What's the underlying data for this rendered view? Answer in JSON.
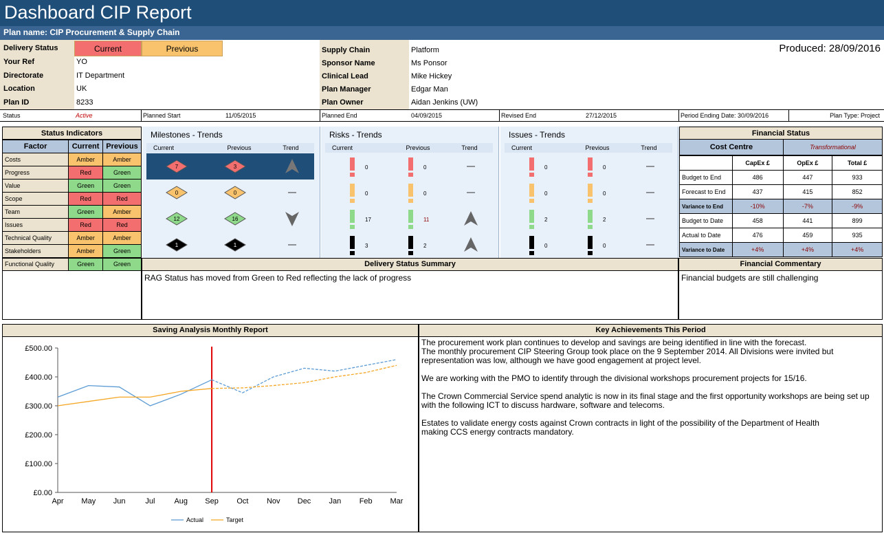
{
  "title": "Dashboard CIP Report",
  "plan_name": "Plan name: CIP Procurement & Supply Chain",
  "produced": "Produced: 28/09/2016",
  "delivery_status": {
    "label": "Delivery Status",
    "current": "Current",
    "previous": "Previous"
  },
  "left_fields": [
    {
      "label": "Your Ref",
      "value": "YO"
    },
    {
      "label": "Directorate",
      "value": "IT Department"
    },
    {
      "label": "Location",
      "value": "UK"
    },
    {
      "label": "Plan ID",
      "value": "8233"
    }
  ],
  "right_fields": [
    {
      "label": "Supply Chain",
      "value": "Platform"
    },
    {
      "label": "Sponsor Name",
      "value": "Ms Ponsor"
    },
    {
      "label": "Clinical Lead",
      "value": "Mike Hickey"
    },
    {
      "label": "Plan Manager",
      "value": "Edgar Man"
    },
    {
      "label": "Plan Owner",
      "value": "Aidan Jenkins (UW)"
    }
  ],
  "status_row": {
    "status_label": "Status",
    "status_value": "Active",
    "planned_start_label": "Planned Start",
    "planned_start": "11/05/2015",
    "planned_end_label": "Planned End",
    "planned_end": "04/09/2015",
    "revised_end_label": "Revised End",
    "revised_end": "27/12/2015",
    "period_ending": "Period Ending Date: 30/09/2016",
    "plan_type": "Plan Type:  Project"
  },
  "status_indicators": {
    "title": "Status Indicators",
    "headers": [
      "Factor",
      "Current",
      "Previous"
    ],
    "rows": [
      {
        "factor": "Costs",
        "current": "Amber",
        "previous": "Amber"
      },
      {
        "factor": "Progress",
        "current": "Red",
        "previous": "Green"
      },
      {
        "factor": "Value",
        "current": "Green",
        "previous": "Green"
      },
      {
        "factor": "Scope",
        "current": "Red",
        "previous": "Red"
      },
      {
        "factor": "Team",
        "current": "Green",
        "previous": "Amber"
      },
      {
        "factor": "Issues",
        "current": "Red",
        "previous": "Red"
      },
      {
        "factor": "Technical Quality",
        "current": "Amber",
        "previous": "Amber"
      },
      {
        "factor": "Stakeholders",
        "current": "Amber",
        "previous": "Green"
      },
      {
        "factor": "Functional Quality",
        "current": "Green",
        "previous": "Green"
      }
    ]
  },
  "trends": {
    "col_current": "Current",
    "col_previous": "Previous",
    "col_trend": "Trend",
    "milestones": {
      "title": "Milestones - Trends",
      "rows": [
        {
          "current": "7",
          "previous": "3",
          "trend": "up"
        },
        {
          "current": "0",
          "previous": "0",
          "trend": "flat"
        },
        {
          "current": "12",
          "previous": "16",
          "trend": "down"
        },
        {
          "current": "1",
          "previous": "1",
          "trend": "flat"
        }
      ]
    },
    "risks": {
      "title": "Risks - Trends",
      "rows": [
        {
          "current": "0",
          "previous": "0",
          "trend": "flat"
        },
        {
          "current": "0",
          "previous": "0",
          "trend": "flat"
        },
        {
          "current": "17",
          "previous": "11",
          "trend": "up"
        },
        {
          "current": "3",
          "previous": "2",
          "trend": "up"
        }
      ]
    },
    "issues": {
      "title": "Issues - Trends",
      "rows": [
        {
          "current": "0",
          "previous": "0",
          "trend": "flat"
        },
        {
          "current": "0",
          "previous": "0",
          "trend": "flat"
        },
        {
          "current": "2",
          "previous": "2",
          "trend": "flat"
        },
        {
          "current": "0",
          "previous": "0",
          "trend": "flat"
        }
      ]
    },
    "row_colors": [
      "#f36f6f",
      "#f9c36e",
      "#8fd98a",
      "#000000"
    ]
  },
  "financial_status": {
    "title": "Financial Status",
    "cost_centre_label": "Cost Centre",
    "cost_centre_value": "Transformational",
    "headers": [
      "CapEx £",
      "OpEx £",
      "Total £"
    ],
    "rows": [
      {
        "label": "Budget to End",
        "capex": "486",
        "opex": "447",
        "total": "933",
        "variance": false
      },
      {
        "label": "Forecast to End",
        "capex": "437",
        "opex": "415",
        "total": "852",
        "variance": false
      },
      {
        "label": "Variance to End",
        "capex": "-10%",
        "opex": "-7%",
        "total": "-9%",
        "variance": true
      },
      {
        "label": "Budget to Date",
        "capex": "458",
        "opex": "441",
        "total": "899",
        "variance": false
      },
      {
        "label": "Actual to Date",
        "capex": "476",
        "opex": "459",
        "total": "935",
        "variance": false
      },
      {
        "label": "Variance to Date",
        "capex": "+4%",
        "opex": "+4%",
        "total": "+4%",
        "variance": true
      }
    ]
  },
  "delivery_summary": {
    "title": "Delivery Status Summary",
    "text": "RAG Status has moved from Green to Red reflecting the lack of progress"
  },
  "financial_commentary": {
    "title": "Financial Commentary",
    "text": "Financial budgets are still challenging"
  },
  "saving_analysis": {
    "title": "Saving Analysis Monthly Report"
  },
  "key_achievements": {
    "title": "Key Achievements This Period",
    "paragraphs": [
      "The procurement work plan continues to develop and savings are being identified in line with the forecast.\nThe monthly procurement CIP Steering Group took place on the 9 September 2014. All Divisions were invited but representation was low, although we have good engagement at project level.",
      "We are working with the PMO to identify through the divisional workshops procurement projects for 15/16.",
      "The Crown Commercial Service spend analytic is now in its final stage and the first opportunity workshops are being set up with the following ICT to discuss hardware, software and telecoms.",
      "Estates to validate energy costs against Crown contracts in light of the possibility of the Department of Health\nmaking CCS energy contracts mandatory."
    ]
  },
  "colors": {
    "amber": "#f9c36e",
    "red": "#f36f6f",
    "green": "#8fd98a",
    "header": "#1f4e79"
  },
  "chart_data": {
    "type": "line",
    "categories": [
      "Apr",
      "May",
      "Jun",
      "Jul",
      "Aug",
      "Sep",
      "Oct",
      "Nov",
      "Dec",
      "Jan",
      "Feb",
      "Mar"
    ],
    "series": [
      {
        "name": "Actual",
        "values": [
          330,
          370,
          365,
          300,
          340,
          390,
          345,
          400,
          430,
          420,
          440,
          460
        ],
        "color": "#5b9bd5"
      },
      {
        "name": "Target",
        "values": [
          300,
          315,
          330,
          330,
          350,
          360,
          362,
          370,
          380,
          400,
          415,
          440
        ],
        "color": "#f5a623"
      }
    ],
    "y_ticks": [
      "£0.00",
      "£100.00",
      "£200.00",
      "£300.00",
      "£400.00",
      "£500.00"
    ],
    "ylim": [
      0,
      500
    ],
    "marker_category": "Sep",
    "legend_position": "bottom",
    "title": ""
  }
}
